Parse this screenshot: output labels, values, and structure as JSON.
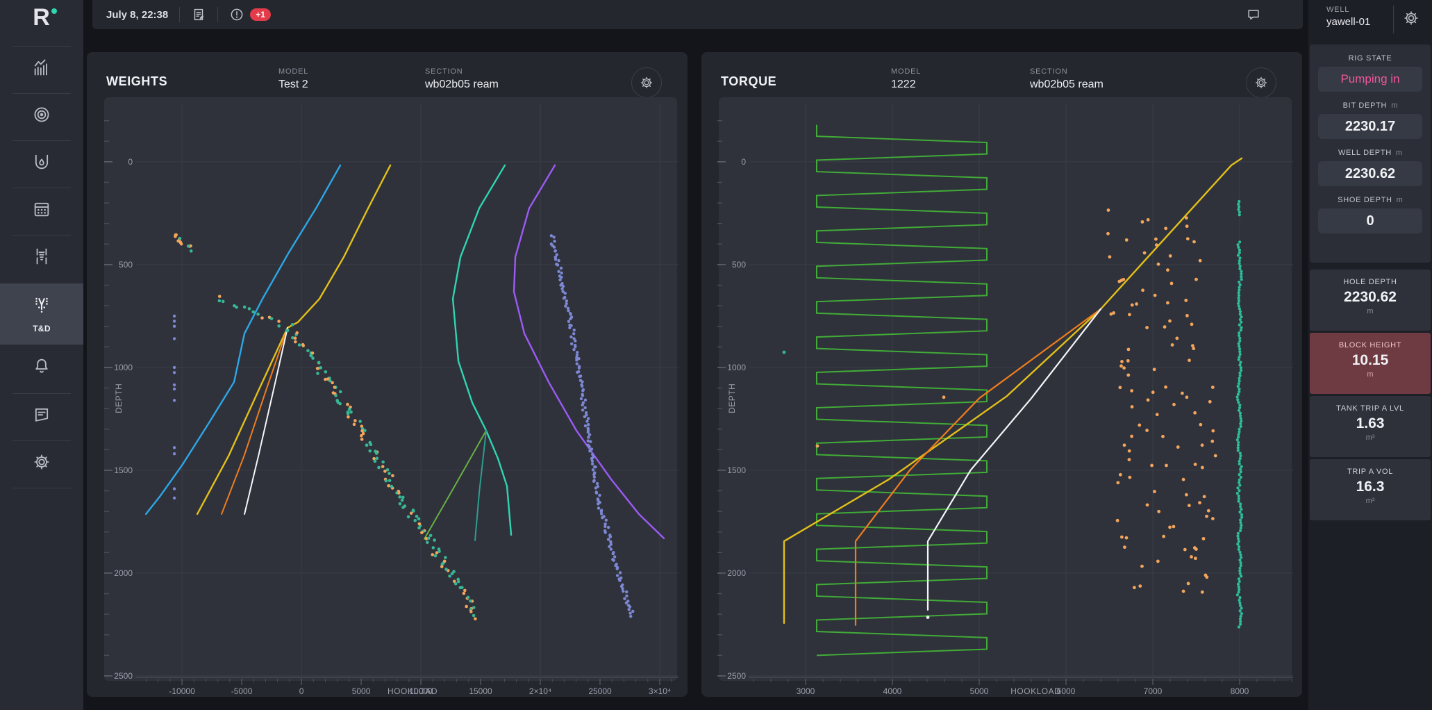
{
  "colors": {
    "rig_state_pink": "#f2569f",
    "highlight_maroon": "#6e3b43",
    "badge_red": "#e23b4a",
    "logo_dot_teal": "#2fd5b0"
  },
  "topbar": {
    "datetime": "July 8, 22:38",
    "alert_badge": "+1"
  },
  "logo": {
    "letter": "R"
  },
  "nav": {
    "active_label": "T&D"
  },
  "right_panel": {
    "well": {
      "label": "WELL",
      "name": "yawell-01"
    },
    "rig_state": {
      "label": "RIG STATE",
      "value": "Pumping in"
    },
    "metrics": [
      {
        "label": "BIT DEPTH",
        "unit": "m",
        "value": "2230.17"
      },
      {
        "label": "WELL DEPTH",
        "unit": "m",
        "value": "2230.62"
      },
      {
        "label": "SHOE DEPTH",
        "unit": "m",
        "value": "0"
      }
    ],
    "tiles": [
      {
        "label": "HOLE DEPTH",
        "value": "2230.62",
        "unit": "m"
      },
      {
        "label": "BLOCK HEIGHT",
        "value": "10.15",
        "unit": "m",
        "highlight": true
      },
      {
        "label": "TANK TRIP A LVL",
        "value": "1.63",
        "unit": "m³"
      },
      {
        "label": "TRIP A VOL",
        "value": "16.3",
        "unit": "m³"
      }
    ]
  },
  "panels": [
    {
      "title": "WEIGHTS",
      "model_label": "MODEL",
      "model": "Test 2",
      "section_label": "SECTION",
      "section": "wb02b05 ream"
    },
    {
      "title": "TORQUE",
      "model_label": "MODEL",
      "model": "1222",
      "section_label": "SECTION",
      "section": "wb02b05 ream"
    }
  ],
  "chart_data": [
    {
      "type": "scatter",
      "title": "WEIGHTS",
      "xlabel": "HOOKLOAD",
      "ylabel": "DEPTH",
      "x_range": [
        -13900,
        31570
      ],
      "y_range": [
        -280,
        2507
      ],
      "x_minor_step": 1000,
      "y_minor_step": 100,
      "xlabel_at": 9300,
      "x_ticks": [
        {
          "v": -10000,
          "label": "-10000"
        },
        {
          "v": -5000,
          "label": "-5000"
        },
        {
          "v": 0,
          "label": "0"
        },
        {
          "v": 5000,
          "label": "5000"
        },
        {
          "v": 10000,
          "label": "10000"
        },
        {
          "v": 15000,
          "label": "15000"
        },
        {
          "v": 20000,
          "label": "2×10⁴"
        },
        {
          "v": 25000,
          "label": "25000"
        },
        {
          "v": 30000,
          "label": "3×10⁴"
        }
      ],
      "y_ticks": [
        {
          "v": 0,
          "label": "0"
        },
        {
          "v": 500,
          "label": "500"
        },
        {
          "v": 1000,
          "label": "1000"
        },
        {
          "v": 1500,
          "label": "1500"
        },
        {
          "v": 2000,
          "label": "2000"
        },
        {
          "v": 2500,
          "label": "2500"
        }
      ],
      "grid_x_every": 10000,
      "series": [
        {
          "name": "pickup-model-blue",
          "type": "line",
          "color": "#2da7e8",
          "width": 2.4,
          "points": [
            [
              3256,
              17
            ],
            [
              1221,
              226
            ],
            [
              -1105,
              446
            ],
            [
              -3256,
              666
            ],
            [
              -4768,
              835
            ],
            [
              -5640,
              1071
            ],
            [
              -7791,
              1274
            ],
            [
              -10000,
              1476
            ],
            [
              -11861,
              1628
            ],
            [
              -13023,
              1713
            ]
          ]
        },
        {
          "name": "slackoff-model-yellow",
          "type": "line",
          "color": "#e3c019",
          "width": 2.4,
          "points": [
            [
              7442,
              17
            ],
            [
              5582,
              226
            ],
            [
              3547,
              463
            ],
            [
              1512,
              666
            ],
            [
              -300,
              780
            ],
            [
              -1163,
              807
            ],
            [
              -3500,
              1100
            ],
            [
              -6100,
              1430
            ],
            [
              -8721,
              1713
            ]
          ]
        },
        {
          "name": "fan-orange",
          "type": "line",
          "color": "#f07d1d",
          "width": 2,
          "points": [
            [
              -1163,
              807
            ],
            [
              -2900,
              1100
            ],
            [
              -4800,
              1430
            ],
            [
              -6686,
              1713
            ]
          ]
        },
        {
          "name": "fan-white",
          "type": "line",
          "color": "#f5f6f8",
          "width": 2,
          "points": [
            [
              -1163,
              807
            ],
            [
              -2300,
              1100
            ],
            [
              -3600,
              1430
            ],
            [
              -4768,
              1713
            ]
          ]
        },
        {
          "name": "rotate-model-teal",
          "type": "line",
          "color": "#2fd5b0",
          "width": 2.4,
          "points": [
            [
              17035,
              17
            ],
            [
              14886,
              226
            ],
            [
              13316,
              463
            ],
            [
              12677,
              666
            ],
            [
              13141,
              970
            ],
            [
              14304,
              1172
            ],
            [
              15467,
              1307
            ],
            [
              16455,
              1443
            ],
            [
              17211,
              1578
            ],
            [
              17560,
              1814
            ]
          ]
        },
        {
          "name": "fan-green",
          "type": "line",
          "color": "#68b043",
          "width": 2,
          "points": [
            [
              15467,
              1307
            ],
            [
              12800,
              1580
            ],
            [
              10291,
              1834
            ]
          ]
        },
        {
          "name": "fan-darkteal",
          "type": "line",
          "color": "#2d9d8f",
          "width": 2,
          "points": [
            [
              15467,
              1307
            ],
            [
              14900,
              1600
            ],
            [
              14536,
              1841
            ]
          ]
        },
        {
          "name": "pickup-model-purple",
          "type": "line",
          "color": "#9c5bf5",
          "width": 2.4,
          "points": [
            [
              21221,
              17
            ],
            [
              19070,
              226
            ],
            [
              17907,
              463
            ],
            [
              17791,
              632
            ],
            [
              18663,
              835
            ],
            [
              20698,
              1071
            ],
            [
              23024,
              1307
            ],
            [
              25931,
              1544
            ],
            [
              28256,
              1713
            ],
            [
              30349,
              1831
            ]
          ]
        },
        {
          "name": "measured-band",
          "type": "band",
          "seed": 7,
          "n": 155,
          "size": 2.3,
          "jitter": [
            420,
            11
          ],
          "colors": [
            "#37b795",
            "#f3a55c"
          ],
          "center": [
            [
              -7209,
              659
            ],
            [
              -1105,
              800
            ],
            [
              3000,
              1120
            ],
            [
              8000,
              1600
            ],
            [
              13000,
              2050
            ],
            [
              14768,
              2213
            ]
          ]
        },
        {
          "name": "measured-cluster",
          "type": "band",
          "seed": 11,
          "n": 13,
          "size": 2.3,
          "jitter": [
            300,
            9
          ],
          "colors": [
            "#37b795",
            "#f3a55c"
          ],
          "center": [
            [
              -10800,
              355
            ],
            [
              -9300,
              425
            ]
          ]
        },
        {
          "name": "purple-dot-column",
          "type": "dot-column",
          "color": "#7d87d2",
          "size": 2.2,
          "v": -10640,
          "depths": [
            750,
            775,
            800,
            860,
            1000,
            1025,
            1085,
            1105,
            1160,
            1390,
            1420,
            1590,
            1635
          ]
        },
        {
          "name": "purple-trail",
          "type": "band",
          "seed": 23,
          "n": 165,
          "size": 2.2,
          "jitter": [
            190,
            6
          ],
          "colors": [
            "#7d87d2"
          ],
          "center": [
            [
              20930,
              361
            ],
            [
              22300,
              700
            ],
            [
              23300,
              1050
            ],
            [
              24100,
              1350
            ],
            [
              24900,
              1650
            ],
            [
              26300,
              1950
            ],
            [
              27700,
              2210
            ]
          ]
        }
      ]
    },
    {
      "type": "scatter",
      "title": "TORQUE",
      "xlabel": "HOOKLOAD",
      "ylabel": "DEPTH",
      "x_range": [
        2344,
        8616
      ],
      "y_range": [
        -280,
        2507
      ],
      "x_minor_step": 200,
      "y_minor_step": 100,
      "xlabel_at": 5650,
      "x_ticks": [
        {
          "v": 3000,
          "label": "3000"
        },
        {
          "v": 4000,
          "label": "4000"
        },
        {
          "v": 5000,
          "label": "5000"
        },
        {
          "v": 6000,
          "label": "6000"
        },
        {
          "v": 7000,
          "label": "7000"
        },
        {
          "v": 8000,
          "label": "8000"
        }
      ],
      "y_ticks": [
        {
          "v": 0,
          "label": "0"
        },
        {
          "v": 500,
          "label": "500"
        },
        {
          "v": 1000,
          "label": "1000"
        },
        {
          "v": 1500,
          "label": "1500"
        },
        {
          "v": 2000,
          "label": "2000"
        },
        {
          "v": 2500,
          "label": "2500"
        }
      ],
      "grid_x_every": 1000,
      "series": [
        {
          "name": "spring-zigzag-green",
          "type": "zigzag",
          "color": "#41ab37",
          "width": 2,
          "v_left": 3128,
          "v_right": 5088,
          "d_top": -180,
          "d_bottom": 2250,
          "edge_m": 56,
          "traverse_m": 30
        },
        {
          "name": "torque-model-yellow",
          "type": "line",
          "color": "#e3c019",
          "width": 2.4,
          "points": [
            [
              8024,
              -17
            ],
            [
              7904,
              17
            ],
            [
              6400,
              716
            ],
            [
              5320,
              1139
            ],
            [
              3960,
              1544
            ],
            [
              2752,
              1845
            ],
            [
              2752,
              2243
            ]
          ]
        },
        {
          "name": "torque-model-orange",
          "type": "line",
          "color": "#f07d1d",
          "width": 2.2,
          "points": [
            [
              6400,
              716
            ],
            [
              5000,
              1150
            ],
            [
              4200,
              1500
            ],
            [
              3576,
              1845
            ],
            [
              3576,
              2253
            ]
          ]
        },
        {
          "name": "torque-model-white",
          "type": "line",
          "color": "#f5f6f8",
          "width": 2.2,
          "points": [
            [
              6400,
              716
            ],
            [
              5600,
              1150
            ],
            [
              4900,
              1500
            ],
            [
              4408,
              1845
            ],
            [
              4408,
              2179
            ]
          ]
        },
        {
          "name": "torque-measured-scatter",
          "type": "band",
          "seed": 31,
          "n": 115,
          "size": 2.4,
          "jitter": [
            600,
            55
          ],
          "colors": [
            "#f3a55c"
          ],
          "center": [
            [
              7000,
              250
            ],
            [
              7200,
              1200
            ],
            [
              7100,
              2100
            ]
          ]
        },
        {
          "name": "teal-dot-line",
          "type": "dot-line",
          "color": "#2dbd9a",
          "size": 2.1,
          "v": 8000,
          "segments": [
            [
              193,
              258
            ],
            [
              390,
              2270
            ]
          ],
          "step": 13,
          "wiggle": 28,
          "seed": 41
        },
        {
          "name": "stray-dots",
          "type": "dots-list",
          "size": 2.4,
          "points": [
            [
              2752,
              926,
              "#2dbd9a"
            ],
            [
              4592,
              1145,
              "#f3a55c"
            ],
            [
              3136,
              1382,
              "#f3a55c"
            ],
            [
              4408,
              2215,
              "#eceef2"
            ]
          ]
        }
      ]
    }
  ]
}
